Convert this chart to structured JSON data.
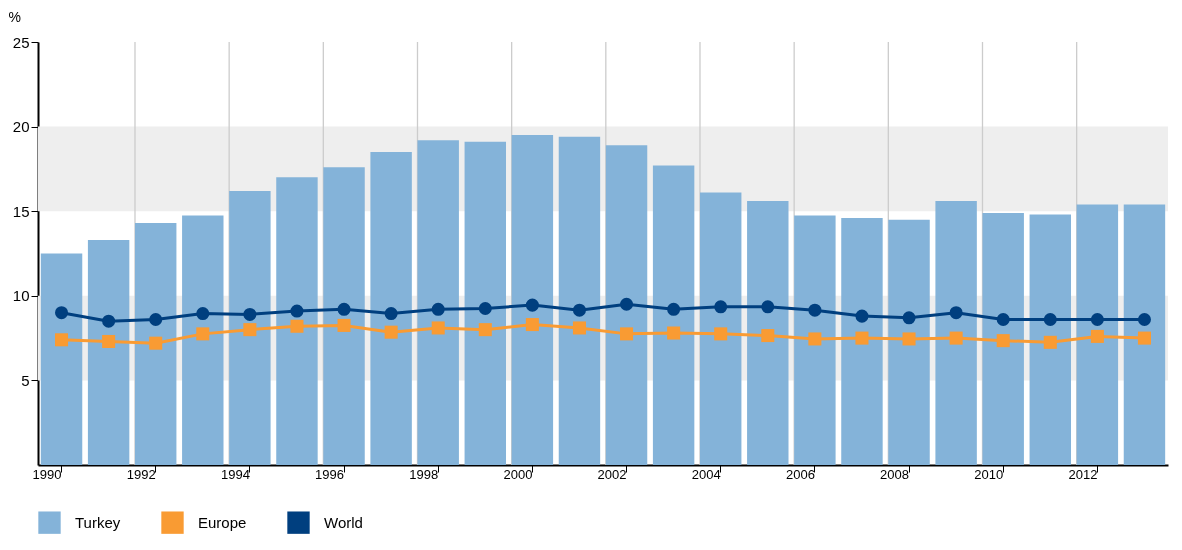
{
  "chart_data": {
    "type": "bar",
    "ylabel": "%",
    "categories": [
      "1990",
      null,
      "1992",
      null,
      "1994",
      null,
      "1996",
      null,
      "1998",
      null,
      "2000",
      null,
      "2002",
      null,
      "2004",
      null,
      "2006",
      null,
      "2008",
      null,
      "2010",
      null,
      "2012",
      null
    ],
    "series": [
      {
        "name": "Turkey",
        "color": "#84b3d9",
        "values": [
          12.5,
          13.3,
          14.3,
          14.75,
          16.2,
          17.0,
          17.6,
          18.5,
          19.2,
          19.1,
          19.5,
          19.4,
          18.9,
          17.7,
          16.1,
          15.6,
          14.75,
          14.6,
          14.5,
          15.6,
          14.9,
          14.8,
          15.4,
          15.4
        ]
      },
      {
        "name": "Europe",
        "type": "line",
        "marker": "square",
        "color": "#f99b33",
        "values": [
          7.4,
          7.3,
          7.2,
          7.75,
          8.0,
          8.2,
          8.25,
          7.85,
          8.1,
          8.0,
          8.3,
          8.1,
          7.75,
          7.8,
          7.75,
          7.65,
          7.45,
          7.5,
          7.45,
          7.5,
          7.35,
          7.25,
          7.6,
          7.5
        ]
      },
      {
        "name": "World",
        "type": "line",
        "marker": "circle",
        "color": "#003f7f",
        "values": [
          9.0,
          8.5,
          8.6,
          8.95,
          8.9,
          9.1,
          9.2,
          8.95,
          9.2,
          9.25,
          9.45,
          9.15,
          9.5,
          9.2,
          9.35,
          9.35,
          9.15,
          8.8,
          8.7,
          9.0,
          8.6,
          8.6,
          8.6,
          8.6
        ]
      }
    ],
    "ylim": [
      0,
      25
    ],
    "yticks": [
      5,
      10,
      15,
      20,
      25
    ],
    "bands": [
      {
        "axis": "y",
        "from": 5,
        "to": 10,
        "color": "#eeeeee"
      },
      {
        "axis": "y",
        "from": 15,
        "to": 20,
        "color": "#eeeeee"
      }
    ],
    "grid": "x",
    "legend": "bottom left"
  }
}
